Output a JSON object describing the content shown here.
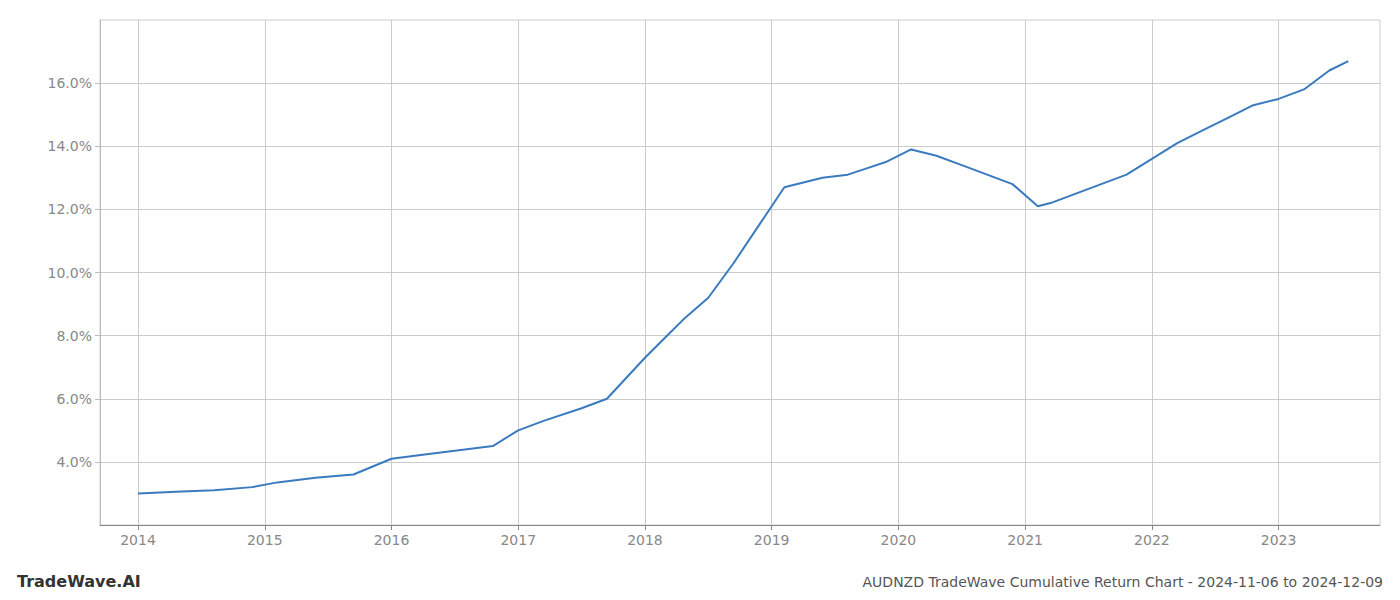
{
  "chart_data": {
    "type": "line",
    "title": "AUDNZD TradeWave Cumulative Return Chart - 2024-11-06 to 2024-12-09",
    "annotations": [
      "TradeWave.AI"
    ],
    "x": [
      2014.0,
      2014.3,
      2014.6,
      2014.9,
      2015.1,
      2015.4,
      2015.7,
      2016.0,
      2016.2,
      2016.5,
      2016.8,
      2017.0,
      2017.2,
      2017.5,
      2017.7,
      2018.0,
      2018.15,
      2018.3,
      2018.5,
      2018.7,
      2018.9,
      2019.1,
      2019.25,
      2019.4,
      2019.6,
      2019.75,
      2019.9,
      2020.1,
      2020.3,
      2020.5,
      2020.7,
      2020.9,
      2021.1,
      2021.2,
      2021.4,
      2021.6,
      2021.8,
      2022.0,
      2022.2,
      2022.4,
      2022.6,
      2022.8,
      2023.0,
      2023.2,
      2023.4,
      2023.55
    ],
    "values": [
      3.0,
      3.05,
      3.1,
      3.2,
      3.35,
      3.5,
      3.6,
      4.1,
      4.2,
      4.35,
      4.5,
      5.0,
      5.3,
      5.7,
      6.0,
      7.3,
      7.9,
      8.5,
      9.2,
      10.3,
      11.5,
      12.7,
      12.85,
      13.0,
      13.1,
      13.3,
      13.5,
      13.9,
      13.7,
      13.4,
      13.1,
      12.8,
      12.1,
      12.2,
      12.5,
      12.8,
      13.1,
      13.6,
      14.1,
      14.5,
      14.9,
      15.3,
      15.5,
      15.8,
      16.4,
      16.7
    ],
    "color": "#3a7abf",
    "xlim": [
      2013.7,
      2023.8
    ],
    "ylim": [
      2.0,
      18.0
    ],
    "xticks": [
      2014,
      2015,
      2016,
      2017,
      2018,
      2019,
      2020,
      2021,
      2022,
      2023
    ],
    "yticks": [
      {
        "value": 4.0,
        "label": "4.0%"
      },
      {
        "value": 6.0,
        "label": "6.0%"
      },
      {
        "value": 8.0,
        "label": "8.0%"
      },
      {
        "value": 10.0,
        "label": "10.0%"
      },
      {
        "value": 12.0,
        "label": "12.0%"
      },
      {
        "value": 14.0,
        "label": "14.0%"
      },
      {
        "value": 16.0,
        "label": "16.0%"
      }
    ],
    "grid": true
  }
}
